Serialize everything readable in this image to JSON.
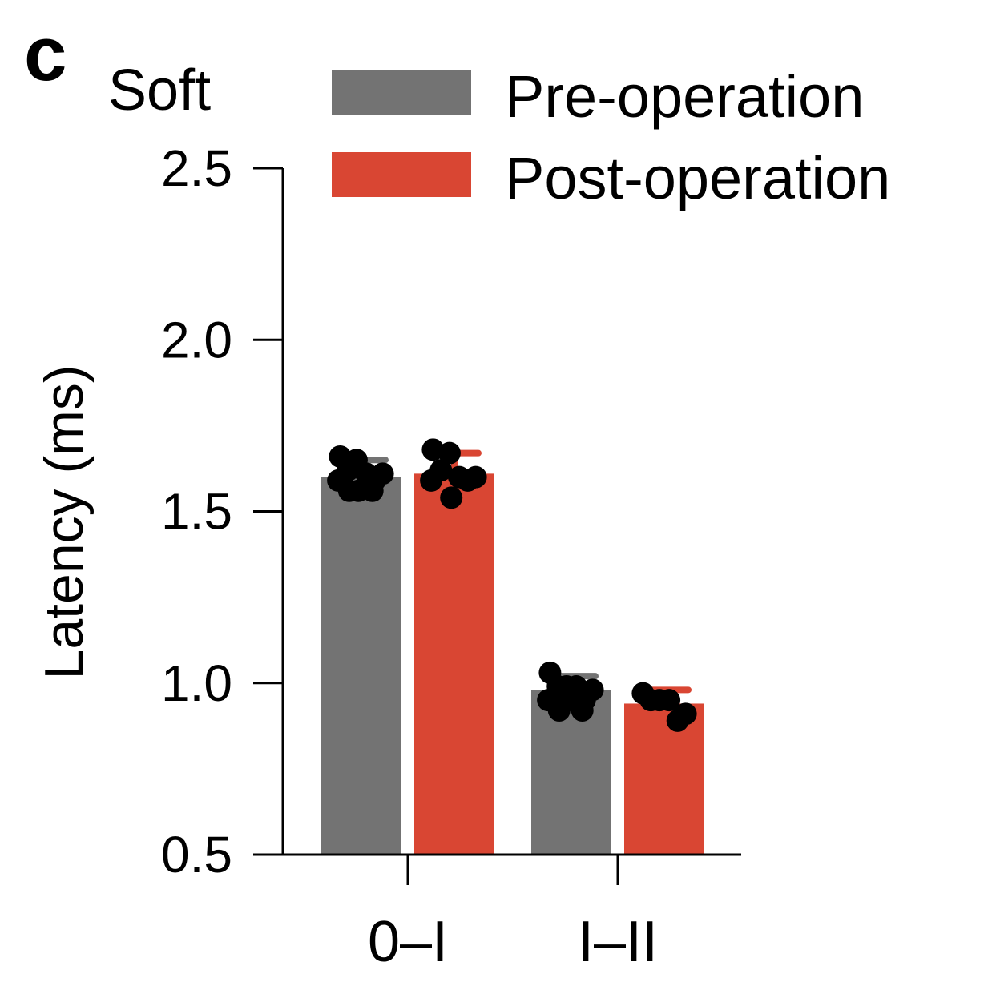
{
  "panel_letter": "c",
  "chart_data": {
    "type": "bar",
    "title": "Soft",
    "xlabel": "",
    "ylabel": "Latency (ms)",
    "ylim": [
      0.5,
      2.5
    ],
    "yticks": [
      "0.5",
      "1.0",
      "1.5",
      "2.0",
      "2.5"
    ],
    "categories": [
      "0–I",
      "I–II"
    ],
    "legend_position": "top-right",
    "grid": false,
    "series": [
      {
        "name": "Pre-operation",
        "color": "#737373",
        "values": [
          1.6,
          0.98
        ],
        "error": [
          0.05,
          0.04
        ],
        "points": [
          [
            1.66,
            1.65,
            1.62,
            1.61,
            1.61,
            1.59,
            1.59,
            1.56,
            1.56,
            1.56
          ],
          [
            1.03,
            0.99,
            0.99,
            0.99,
            0.98,
            0.95,
            0.95,
            0.95,
            0.92,
            0.92
          ]
        ]
      },
      {
        "name": "Post-operation",
        "color": "#d94633",
        "values": [
          1.61,
          0.94
        ],
        "error": [
          0.06,
          0.04
        ],
        "points": [
          [
            1.68,
            1.67,
            1.62,
            1.6,
            1.6,
            1.59,
            1.59,
            1.54
          ],
          [
            0.97,
            0.95,
            0.95,
            0.95,
            0.91,
            0.89
          ]
        ]
      }
    ]
  }
}
